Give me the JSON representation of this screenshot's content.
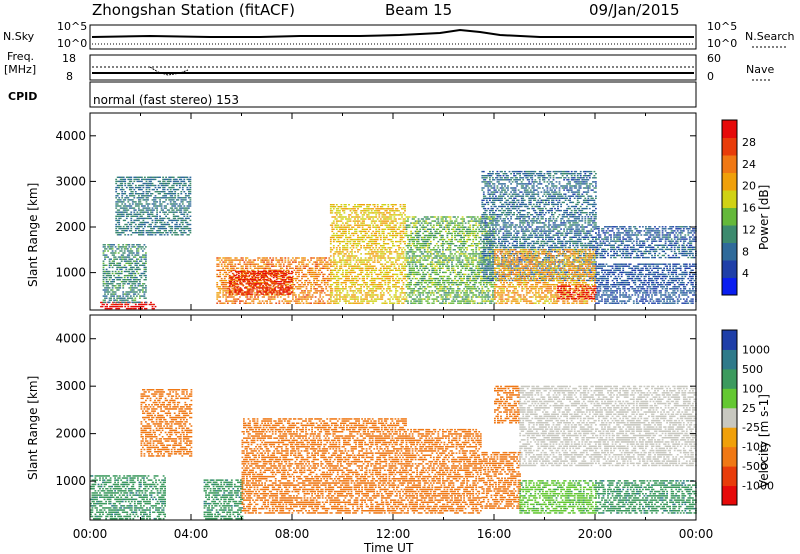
{
  "header": {
    "station": "Zhongshan Station (fitACF)",
    "beam": "Beam 15",
    "date": "09/Jan/2015"
  },
  "summary_panel": {
    "nsky_label": "N.Sky",
    "nsearch_label": "N.Search",
    "nsky_ticks": [
      "10^5",
      "10^0"
    ],
    "nsearch_ticks": [
      "10^5",
      "10^0"
    ],
    "freq_label_1": "Freq.",
    "freq_label_2": "[MHz]",
    "freq_ticks": [
      "18",
      "8"
    ],
    "nave_label": "Nave",
    "nave_ticks": [
      "60",
      "0"
    ],
    "cpid_label": "CPID",
    "cpid_text": "normal (fast stereo) 153"
  },
  "chart_data": [
    {
      "type": "heatmap",
      "title": "",
      "xlabel": "Time UT",
      "ylabel": "Slant Range [km]",
      "xlim": [
        0,
        24
      ],
      "ylim": [
        180,
        4500
      ],
      "x_ticks": [
        "00:00",
        "04:00",
        "08:00",
        "12:00",
        "16:00",
        "20:00",
        "00:00"
      ],
      "y_ticks": [
        1000,
        2000,
        3000,
        4000
      ],
      "colorbar": {
        "label": "Power [dB]",
        "ticks": [
          "4",
          "8",
          "12",
          "16",
          "20",
          "24",
          "28"
        ],
        "range": [
          0,
          30
        ],
        "colors": [
          "#0a1ef0",
          "#1f3fa8",
          "#2f6a9a",
          "#3c8a6e",
          "#64b83a",
          "#d0d214",
          "#f0a00a",
          "#f07814",
          "#e83c0a",
          "#e60a0a"
        ]
      },
      "regions": [
        {
          "t0": 0.4,
          "t1": 2.6,
          "r0": 180,
          "r1": 320,
          "value": 29
        },
        {
          "t0": 0.5,
          "t1": 2.2,
          "r0": 320,
          "r1": 1600,
          "value": 10
        },
        {
          "t0": 1.0,
          "t1": 4.0,
          "r0": 1800,
          "r1": 3100,
          "value": 9
        },
        {
          "t0": 5.0,
          "t1": 9.5,
          "r0": 300,
          "r1": 1300,
          "value": 22
        },
        {
          "t0": 5.5,
          "t1": 8.0,
          "r0": 500,
          "r1": 1000,
          "value": 27
        },
        {
          "t0": 9.5,
          "t1": 12.5,
          "r0": 300,
          "r1": 2500,
          "value": 18
        },
        {
          "t0": 12.5,
          "t1": 16.0,
          "r0": 300,
          "r1": 2200,
          "value": 13
        },
        {
          "t0": 15.5,
          "t1": 20.0,
          "r0": 800,
          "r1": 3200,
          "value": 8
        },
        {
          "t0": 16.0,
          "t1": 20.0,
          "r0": 300,
          "r1": 1500,
          "value": 20
        },
        {
          "t0": 18.5,
          "t1": 20.0,
          "r0": 400,
          "r1": 700,
          "value": 28
        },
        {
          "t0": 20.0,
          "t1": 24.0,
          "r0": 1300,
          "r1": 2000,
          "value": 7
        },
        {
          "t0": 20.0,
          "t1": 24.0,
          "r0": 300,
          "r1": 1200,
          "value": 6
        }
      ]
    },
    {
      "type": "heatmap",
      "title": "",
      "xlabel": "Time UT",
      "ylabel": "Slant Range [km]",
      "xlim": [
        0,
        24
      ],
      "ylim": [
        180,
        4500
      ],
      "x_ticks": [
        "00:00",
        "04:00",
        "08:00",
        "12:00",
        "16:00",
        "20:00",
        "00:00"
      ],
      "y_ticks": [
        1000,
        2000,
        3000,
        4000
      ],
      "colorbar": {
        "label": "Velocity [m s-1]",
        "ticks": [
          "1000",
          "500",
          "100",
          "25",
          "-25",
          "-100",
          "-500",
          "-1000"
        ],
        "colors": [
          "#1f3fa8",
          "#2f7a8a",
          "#3c9a5e",
          "#64c832",
          "#c8c8c0",
          "#f0a00a",
          "#f07814",
          "#e83c0a",
          "#e60a0a"
        ]
      },
      "regions": [
        {
          "t0": 0.0,
          "t1": 3.0,
          "r0": 180,
          "r1": 1100,
          "value": 260
        },
        {
          "t0": 2.0,
          "t1": 4.0,
          "r0": 1500,
          "r1": 2900,
          "value": -150
        },
        {
          "t0": 4.5,
          "t1": 6.0,
          "r0": 180,
          "r1": 1000,
          "value": 250
        },
        {
          "t0": 6.0,
          "t1": 12.5,
          "r0": 300,
          "r1": 2300,
          "value": -200
        },
        {
          "t0": 12.5,
          "t1": 15.5,
          "r0": 300,
          "r1": 2100,
          "value": -180
        },
        {
          "t0": 15.5,
          "t1": 17.0,
          "r0": 400,
          "r1": 1600,
          "value": -140
        },
        {
          "t0": 16.0,
          "t1": 17.0,
          "r0": 2200,
          "r1": 3000,
          "value": -130
        },
        {
          "t0": 17.0,
          "t1": 24.0,
          "r0": 1300,
          "r1": 3000,
          "value": 0
        },
        {
          "t0": 17.0,
          "t1": 20.0,
          "r0": 300,
          "r1": 1000,
          "value": 70
        },
        {
          "t0": 20.0,
          "t1": 24.0,
          "r0": 300,
          "r1": 1000,
          "value": 300
        }
      ]
    }
  ]
}
